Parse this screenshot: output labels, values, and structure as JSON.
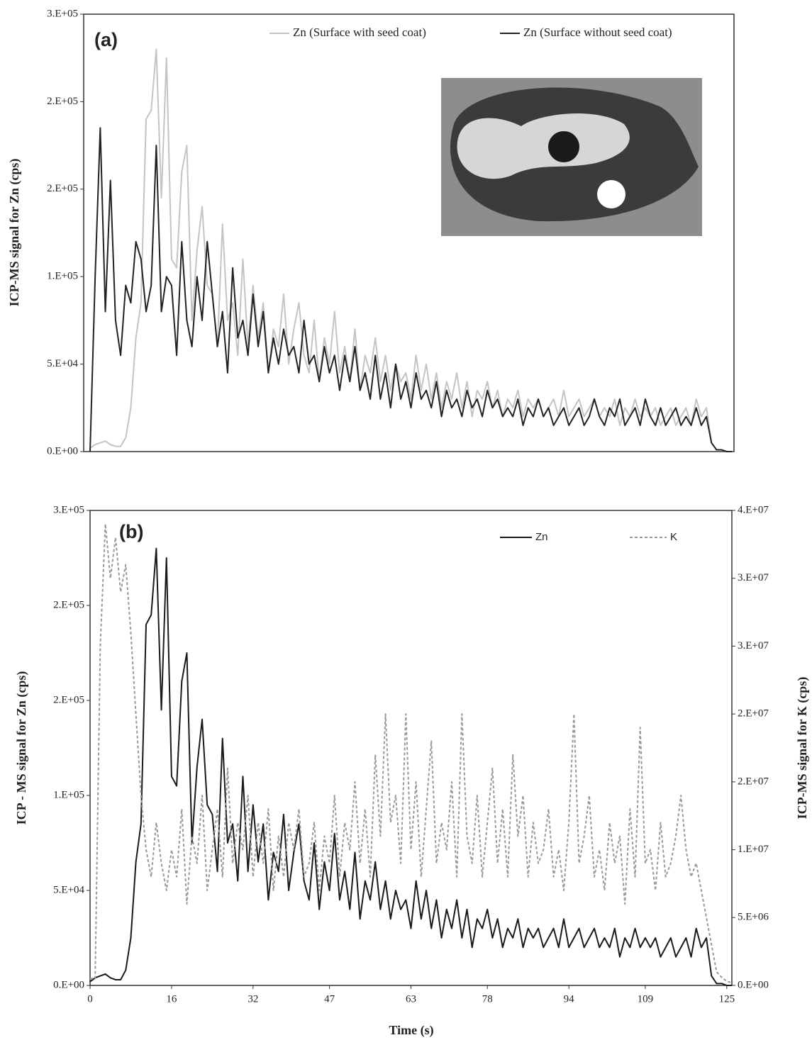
{
  "chart_data": [
    {
      "type": "line",
      "title": "(a)",
      "ylabel": "ICP-MS signal for Zn (cps)",
      "x": [
        0,
        1,
        2,
        3,
        4,
        5,
        6,
        7,
        8,
        9,
        10,
        11,
        12,
        13,
        14,
        15,
        16,
        17,
        18,
        19,
        20,
        21,
        22,
        23,
        24,
        25,
        26,
        27,
        28,
        29,
        30,
        31,
        32,
        33,
        34,
        35,
        36,
        37,
        38,
        39,
        40,
        41,
        42,
        43,
        44,
        45,
        46,
        47,
        48,
        49,
        50,
        51,
        52,
        53,
        54,
        55,
        56,
        57,
        58,
        59,
        60,
        61,
        62,
        63,
        64,
        65,
        66,
        67,
        68,
        69,
        70,
        71,
        72,
        73,
        74,
        75,
        76,
        77,
        78,
        79,
        80,
        81,
        82,
        83,
        84,
        85,
        86,
        87,
        88,
        89,
        90,
        91,
        92,
        93,
        94,
        95,
        96,
        97,
        98,
        99,
        100,
        101,
        102,
        103,
        104,
        105,
        106,
        107,
        108,
        109,
        110,
        111,
        112,
        113,
        114,
        115,
        116,
        117,
        118,
        119,
        120,
        121,
        122,
        123,
        124,
        125,
        126
      ],
      "xlim": [
        0,
        126
      ],
      "ylim": [
        0,
        250000
      ],
      "yticks": [
        {
          "value": 0,
          "label": "0.E+00"
        },
        {
          "value": 50000,
          "label": "5.E+04"
        },
        {
          "value": 100000,
          "label": "1.E+05"
        },
        {
          "value": 150000,
          "label": "2.E+05"
        },
        {
          "value": 200000,
          "label": "2.E+05"
        },
        {
          "value": 250000,
          "label": "3.E+05"
        }
      ],
      "legend": "top-right",
      "series": [
        {
          "name": "Zn (Surface with seed coat)",
          "color": "#c4c4c4",
          "values": [
            2000.0,
            4000.0,
            5000.0,
            6000.0,
            4000.0,
            3000.0,
            3000.0,
            8000.0,
            25000.0,
            65000.0,
            85000.0,
            190000.0,
            195000.0,
            230000.0,
            145000.0,
            225000.0,
            110000.0,
            105000.0,
            160000.0,
            175000.0,
            75000.0,
            115000.0,
            140000.0,
            95000.0,
            90000.0,
            60000.0,
            130000.0,
            75000.0,
            85000.0,
            55000.0,
            110000.0,
            60000.0,
            95000.0,
            65000.0,
            85000.0,
            45000.0,
            70000.0,
            60000.0,
            90000.0,
            50000.0,
            70000.0,
            85000.0,
            55000.0,
            45000.0,
            75000.0,
            40000.0,
            65000.0,
            50000.0,
            80000.0,
            45000.0,
            60000.0,
            40000.0,
            70000.0,
            35000.0,
            55000.0,
            45000.0,
            65000.0,
            40000.0,
            55000.0,
            35000.0,
            50000.0,
            40000.0,
            45000.0,
            30000.0,
            55000.0,
            35000.0,
            50000.0,
            30000.0,
            45000.0,
            25000.0,
            40000.0,
            30000.0,
            45000.0,
            25000.0,
            40000.0,
            20000.0,
            35000.0,
            30000.0,
            40000.0,
            25000.0,
            35000.0,
            20000.0,
            30000.0,
            25000.0,
            35000.0,
            20000.0,
            30000.0,
            25000.0,
            30000.0,
            20000.0,
            25000.0,
            30000.0,
            20000.0,
            35000.0,
            20000.0,
            25000.0,
            30000.0,
            20000.0,
            25000.0,
            30000.0,
            20000.0,
            25000.0,
            20000.0,
            30000.0,
            15000.0,
            25000.0,
            20000.0,
            30000.0,
            20000.0,
            25000.0,
            20000.0,
            25000.0,
            15000.0,
            20000.0,
            25000.0,
            15000.0,
            20000.0,
            25000.0,
            15000.0,
            30000.0,
            20000.0,
            25000.0,
            5000.0,
            1000.0,
            1000.0,
            0,
            0
          ]
        },
        {
          "name": "Zn (Surface without seed coat)",
          "color": "#222222",
          "values": [
            0,
            100000.0,
            185000.0,
            80000.0,
            155000.0,
            75000.0,
            55000.0,
            95000.0,
            85000.0,
            120000.0,
            110000.0,
            80000.0,
            95000.0,
            175000.0,
            80000.0,
            100000.0,
            95000.0,
            55000.0,
            120000.0,
            75000.0,
            60000.0,
            100000.0,
            75000.0,
            120000.0,
            90000.0,
            60000.0,
            80000.0,
            45000.0,
            105000.0,
            65000.0,
            75000.0,
            55000.0,
            90000.0,
            60000.0,
            80000.0,
            45000.0,
            65000.0,
            50000.0,
            70000.0,
            55000.0,
            60000.0,
            45000.0,
            75000.0,
            50000.0,
            55000.0,
            40000.0,
            60000.0,
            45000.0,
            55000.0,
            35000.0,
            55000.0,
            40000.0,
            60000.0,
            35000.0,
            45000.0,
            30000.0,
            55000.0,
            30000.0,
            45000.0,
            25000.0,
            50000.0,
            30000.0,
            40000.0,
            25000.0,
            45000.0,
            30000.0,
            35000.0,
            25000.0,
            40000.0,
            20000.0,
            35000.0,
            25000.0,
            30000.0,
            20000.0,
            35000.0,
            25000.0,
            30000.0,
            20000.0,
            35000.0,
            25000.0,
            30000.0,
            20000.0,
            25000.0,
            20000.0,
            30000.0,
            15000.0,
            25000.0,
            20000.0,
            30000.0,
            20000.0,
            25000.0,
            15000.0,
            20000.0,
            25000.0,
            15000.0,
            20000.0,
            25000.0,
            15000.0,
            20000.0,
            30000.0,
            20000.0,
            15000.0,
            25000.0,
            20000.0,
            30000.0,
            15000.0,
            20000.0,
            25000.0,
            15000.0,
            30000.0,
            20000.0,
            15000.0,
            25000.0,
            15000.0,
            20000.0,
            25000.0,
            15000.0,
            20000.0,
            15000.0,
            25000.0,
            15000.0,
            20000.0,
            5000.0,
            1000.0,
            1000.0,
            0,
            0
          ]
        }
      ]
    },
    {
      "type": "line",
      "title": "(b)",
      "xlabel": "Time (s)",
      "ylabel": "ICP - MS signal for Zn (cps)",
      "y2label": "ICP-MS signal for K (cps)",
      "x": [
        0,
        1,
        2,
        3,
        4,
        5,
        6,
        7,
        8,
        9,
        10,
        11,
        12,
        13,
        14,
        15,
        16,
        17,
        18,
        19,
        20,
        21,
        22,
        23,
        24,
        25,
        26,
        27,
        28,
        29,
        30,
        31,
        32,
        33,
        34,
        35,
        36,
        37,
        38,
        39,
        40,
        41,
        42,
        43,
        44,
        45,
        46,
        47,
        48,
        49,
        50,
        51,
        52,
        53,
        54,
        55,
        56,
        57,
        58,
        59,
        60,
        61,
        62,
        63,
        64,
        65,
        66,
        67,
        68,
        69,
        70,
        71,
        72,
        73,
        74,
        75,
        76,
        77,
        78,
        79,
        80,
        81,
        82,
        83,
        84,
        85,
        86,
        87,
        88,
        89,
        90,
        91,
        92,
        93,
        94,
        95,
        96,
        97,
        98,
        99,
        100,
        101,
        102,
        103,
        104,
        105,
        106,
        107,
        108,
        109,
        110,
        111,
        112,
        113,
        114,
        115,
        116,
        117,
        118,
        119,
        120,
        121,
        122,
        123,
        124,
        125,
        126
      ],
      "xlim": [
        0,
        126
      ],
      "xticks": [
        0,
        16,
        32,
        47,
        63,
        78,
        94,
        109,
        125
      ],
      "ylim": [
        0,
        250000
      ],
      "yticks": [
        {
          "value": 0,
          "label": "0.E+00"
        },
        {
          "value": 50000,
          "label": "5.E+04"
        },
        {
          "value": 100000,
          "label": "1.E+05"
        },
        {
          "value": 150000,
          "label": "2.E+05"
        },
        {
          "value": 200000,
          "label": "2.E+05"
        },
        {
          "value": 250000,
          "label": "3.E+05"
        }
      ],
      "y2lim": [
        0,
        35000000
      ],
      "y2ticks": [
        {
          "value": 0,
          "label": "0.E+00"
        },
        {
          "value": 5000000,
          "label": "5.E+06"
        },
        {
          "value": 10000000,
          "label": "1.E+07"
        },
        {
          "value": 15000000,
          "label": "2.E+07"
        },
        {
          "value": 20000000,
          "label": "2.E+07"
        },
        {
          "value": 25000000,
          "label": "3.E+07"
        },
        {
          "value": 30000000,
          "label": "3.E+07"
        },
        {
          "value": 35000000,
          "label": "4.E+07"
        }
      ],
      "legend": "top-right",
      "series": [
        {
          "name": "Zn",
          "color": "#1a1a1a",
          "values": [
            2000.0,
            4000.0,
            5000.0,
            6000.0,
            4000.0,
            3000.0,
            3000.0,
            8000.0,
            25000.0,
            65000.0,
            85000.0,
            190000.0,
            195000.0,
            230000.0,
            145000.0,
            225000.0,
            110000.0,
            105000.0,
            160000.0,
            175000.0,
            75000.0,
            115000.0,
            140000.0,
            95000.0,
            90000.0,
            60000.0,
            130000.0,
            75000.0,
            85000.0,
            55000.0,
            110000.0,
            60000.0,
            95000.0,
            65000.0,
            85000.0,
            45000.0,
            70000.0,
            60000.0,
            90000.0,
            50000.0,
            70000.0,
            85000.0,
            55000.0,
            45000.0,
            75000.0,
            40000.0,
            65000.0,
            50000.0,
            80000.0,
            45000.0,
            60000.0,
            40000.0,
            70000.0,
            35000.0,
            55000.0,
            45000.0,
            65000.0,
            40000.0,
            55000.0,
            35000.0,
            50000.0,
            40000.0,
            45000.0,
            30000.0,
            55000.0,
            35000.0,
            50000.0,
            30000.0,
            45000.0,
            25000.0,
            40000.0,
            30000.0,
            45000.0,
            25000.0,
            40000.0,
            20000.0,
            35000.0,
            30000.0,
            40000.0,
            25000.0,
            35000.0,
            20000.0,
            30000.0,
            25000.0,
            35000.0,
            20000.0,
            30000.0,
            25000.0,
            30000.0,
            20000.0,
            25000.0,
            30000.0,
            20000.0,
            35000.0,
            20000.0,
            25000.0,
            30000.0,
            20000.0,
            25000.0,
            30000.0,
            20000.0,
            25000.0,
            20000.0,
            30000.0,
            15000.0,
            25000.0,
            20000.0,
            30000.0,
            20000.0,
            25000.0,
            20000.0,
            25000.0,
            15000.0,
            20000.0,
            25000.0,
            15000.0,
            20000.0,
            25000.0,
            15000.0,
            30000.0,
            20000.0,
            25000.0,
            5000.0,
            1000.0,
            1000.0,
            0,
            0
          ]
        },
        {
          "name": "K",
          "color": "#999999",
          "axis": "y2",
          "dash": true,
          "values": [
            500000.0,
            500000.0,
            25000000.0,
            34000000.0,
            30000000.0,
            33000000.0,
            29000000.0,
            31000000.0,
            26000000.0,
            20000000.0,
            14000000.0,
            10000000.0,
            8000000.0,
            12000000.0,
            9000000.0,
            7000000.0,
            10000000.0,
            8000000.0,
            13000000.0,
            6000000.0,
            11000000.0,
            9000000.0,
            14000000.0,
            7000000.0,
            10000000.0,
            13000000.0,
            8000000.0,
            16000000.0,
            9000000.0,
            12000000.0,
            10000000.0,
            14000000.0,
            8000000.0,
            12000000.0,
            9000000.0,
            13000000.0,
            7000000.0,
            11000000.0,
            8000000.0,
            12000000.0,
            10000000.0,
            13000000.0,
            8000000.0,
            9000000.0,
            12000000.0,
            7000000.0,
            11000000.0,
            9000000.0,
            14000000.0,
            8000000.0,
            12000000.0,
            10000000.0,
            15000000.0,
            9000000.0,
            13000000.0,
            8000000.0,
            17000000.0,
            11000000.0,
            20000000.0,
            12000000.0,
            14000000.0,
            9000000.0,
            20000000.0,
            10000000.0,
            15000000.0,
            8000000.0,
            13000000.0,
            18000000.0,
            9000000.0,
            12000000.0,
            10000000.0,
            15000000.0,
            8000000.0,
            20000000.0,
            11000000.0,
            9000000.0,
            14000000.0,
            8000000.0,
            12000000.0,
            16000000.0,
            9000000.0,
            13000000.0,
            8000000.0,
            17000000.0,
            11000000.0,
            14000000.0,
            8000000.0,
            12000000.0,
            9000000.0,
            10000000.0,
            13000000.0,
            8000000.0,
            10000000.0,
            7000000.0,
            12000000.0,
            20000000.0,
            9000000.0,
            11000000.0,
            14000000.0,
            8000000.0,
            10000000.0,
            7000000.0,
            12000000.0,
            9000000.0,
            11000000.0,
            6000000.0,
            13000000.0,
            8000000.0,
            19000000.0,
            9000000.0,
            10000000.0,
            7000000.0,
            12000000.0,
            8000000.0,
            9000000.0,
            11000000.0,
            14000000.0,
            10000000.0,
            8000000.0,
            9000000.0,
            7000000.0,
            5000000.0,
            3000000.0,
            1000000.0,
            600000.0,
            300000.0,
            200000.0
          ]
        }
      ]
    }
  ]
}
